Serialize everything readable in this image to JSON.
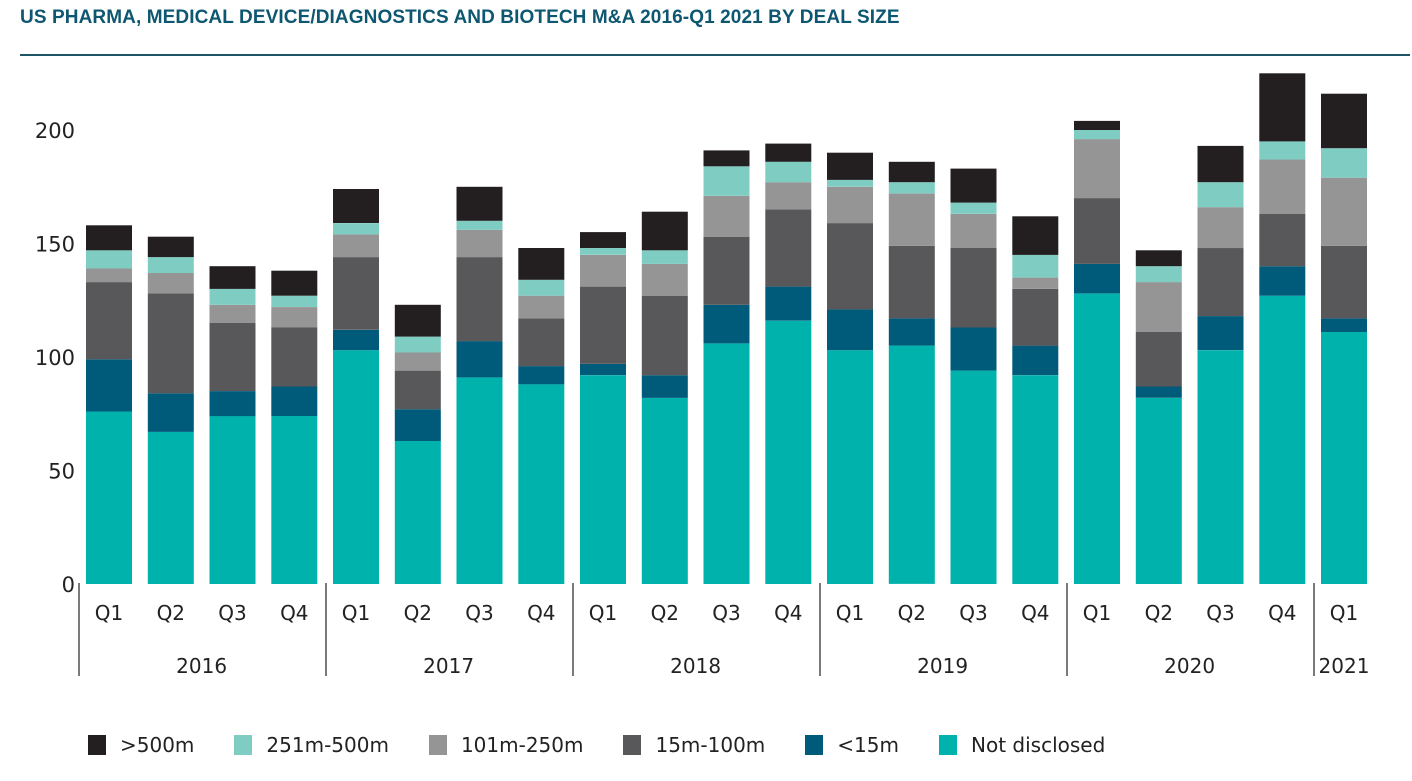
{
  "chart_data": {
    "type": "bar",
    "stacked": true,
    "title": "US PHARMA, MEDICAL DEVICE/DIAGNOSTICS AND BIOTECH M&A 2016-Q1 2021 BY DEAL SIZE",
    "xlabel": "",
    "ylabel": "",
    "ylim": [
      0,
      225
    ],
    "yticks": [
      0,
      50,
      100,
      150,
      200
    ],
    "grid": false,
    "legend_position": "bottom",
    "categories": [
      "Q1",
      "Q2",
      "Q3",
      "Q4",
      "Q1",
      "Q2",
      "Q3",
      "Q4",
      "Q1",
      "Q2",
      "Q3",
      "Q4",
      "Q1",
      "Q2",
      "Q3",
      "Q4",
      "Q1",
      "Q2",
      "Q3",
      "Q4",
      "Q1"
    ],
    "year_groups": [
      {
        "label": "2016",
        "count": 4
      },
      {
        "label": "2017",
        "count": 4
      },
      {
        "label": "2018",
        "count": 4
      },
      {
        "label": "2019",
        "count": 4
      },
      {
        "label": "2020",
        "count": 4
      },
      {
        "label": "2021",
        "count": 1
      }
    ],
    "series": [
      {
        "name": "Not disclosed",
        "color": "#00b2ac",
        "values": [
          76,
          67,
          74,
          74,
          103,
          63,
          91,
          88,
          92,
          82,
          106,
          116,
          103,
          105,
          94,
          92,
          128,
          82,
          103,
          127,
          111
        ]
      },
      {
        "name": "<15m",
        "color": "#005a7a",
        "values": [
          23,
          17,
          11,
          13,
          9,
          14,
          16,
          8,
          5,
          10,
          17,
          15,
          18,
          12,
          19,
          13,
          13,
          5,
          15,
          13,
          6
        ]
      },
      {
        "name": "15m-100m",
        "color": "#58585a",
        "values": [
          34,
          44,
          30,
          26,
          32,
          17,
          37,
          21,
          34,
          35,
          30,
          34,
          38,
          32,
          35,
          25,
          29,
          24,
          30,
          23,
          32
        ]
      },
      {
        "name": "101m-250m",
        "color": "#959595",
        "values": [
          6,
          9,
          8,
          9,
          10,
          8,
          12,
          10,
          14,
          14,
          18,
          12,
          16,
          23,
          15,
          5,
          26,
          22,
          18,
          24,
          30
        ]
      },
      {
        "name": "251m-500m",
        "color": "#7fcdc2",
        "values": [
          8,
          7,
          7,
          5,
          5,
          7,
          4,
          7,
          3,
          6,
          13,
          9,
          3,
          5,
          5,
          10,
          4,
          7,
          11,
          8,
          13
        ]
      },
      {
        "name": ">500m",
        "color": "#231f20",
        "values": [
          11,
          9,
          10,
          11,
          15,
          14,
          15,
          14,
          7,
          17,
          7,
          8,
          12,
          9,
          15,
          17,
          4,
          7,
          16,
          30,
          24
        ]
      }
    ],
    "legend_order": [
      ">500m",
      "251m-500m",
      "101m-250m",
      "15m-100m",
      "<15m",
      "Not disclosed"
    ]
  }
}
